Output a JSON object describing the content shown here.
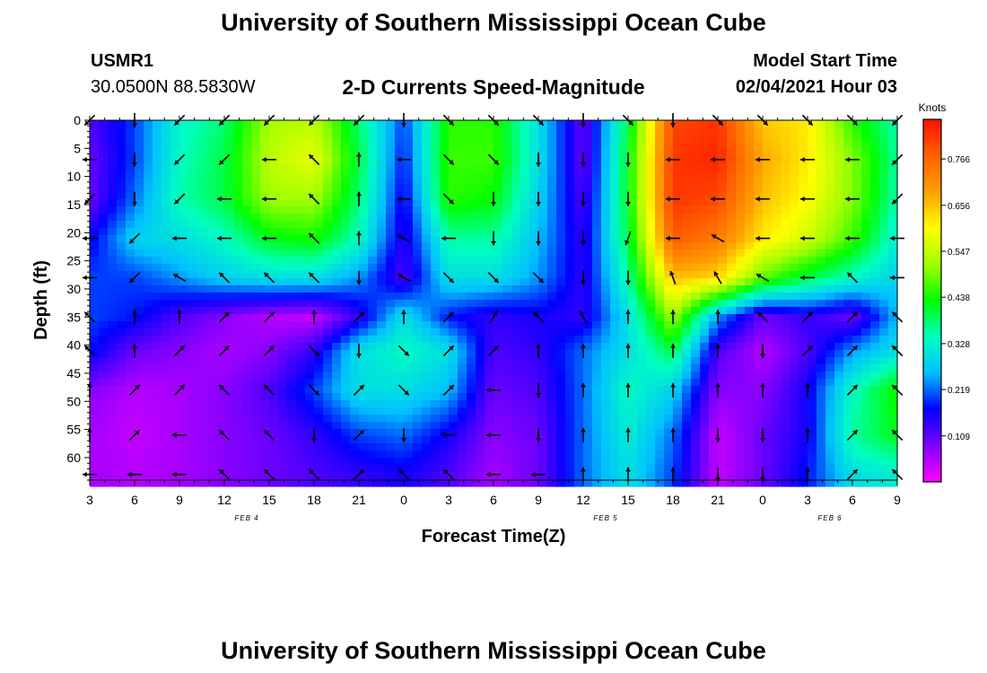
{
  "header": {
    "title": "University of Southern Mississippi Ocean Cube",
    "station_id": "USMR1",
    "station_coords": "30.0500N 88.5830W",
    "subtitle": "2-D Currents Speed-Magnitude",
    "model_start_label": "Model Start Time",
    "model_start_value": "02/04/2021 Hour 03"
  },
  "footer": {
    "title": "University of Southern Mississippi Ocean Cube"
  },
  "chart_data": {
    "type": "heatmap",
    "xlabel": "Forecast Time(Z)",
    "ylabel": "Depth (ft)",
    "x_ticks": [
      "3",
      "6",
      "9",
      "12",
      "15",
      "18",
      "21",
      "0",
      "3",
      "6",
      "9",
      "12",
      "15",
      "18",
      "21",
      "0",
      "3",
      "6",
      "9"
    ],
    "date_labels": [
      {
        "label": "FEB 4",
        "after_tick": 3.5
      },
      {
        "label": "FEB 5",
        "after_tick": 11.5
      },
      {
        "label": "FEB 6",
        "after_tick": 16.5
      }
    ],
    "y_ticks": [
      0,
      5,
      10,
      15,
      20,
      25,
      30,
      35,
      40,
      45,
      50,
      55,
      60
    ],
    "ylim": [
      0,
      64
    ],
    "colorbar": {
      "title": "Knots",
      "ticks": [
        "0.766",
        "0.656",
        "0.547",
        "0.438",
        "0.328",
        "0.219",
        "0.109"
      ],
      "colors": [
        "#ff00ff",
        "#8000ff",
        "#0000ff",
        "#00c0ff",
        "#00ffc0",
        "#00ff00",
        "#a0ff00",
        "#ffff00",
        "#ffa000",
        "#ff6000",
        "#ff1000"
      ]
    },
    "depth_levels": [
      0,
      7,
      14,
      21,
      28,
      35,
      41,
      48,
      56,
      63
    ],
    "speed_grid": [
      [
        0.12,
        0.2,
        0.33,
        0.38,
        0.52,
        0.54,
        0.38,
        0.2,
        0.45,
        0.45,
        0.3,
        0.1,
        0.4,
        0.8,
        0.82,
        0.65,
        0.62,
        0.45,
        0.35
      ],
      [
        0.1,
        0.2,
        0.34,
        0.4,
        0.54,
        0.58,
        0.4,
        0.18,
        0.46,
        0.46,
        0.3,
        0.1,
        0.42,
        0.82,
        0.84,
        0.68,
        0.62,
        0.5,
        0.36
      ],
      [
        0.1,
        0.22,
        0.35,
        0.4,
        0.52,
        0.52,
        0.38,
        0.16,
        0.45,
        0.43,
        0.28,
        0.12,
        0.42,
        0.82,
        0.8,
        0.66,
        0.6,
        0.5,
        0.35
      ],
      [
        0.16,
        0.28,
        0.3,
        0.34,
        0.42,
        0.44,
        0.34,
        0.14,
        0.36,
        0.36,
        0.26,
        0.14,
        0.4,
        0.78,
        0.74,
        0.62,
        0.56,
        0.46,
        0.32
      ],
      [
        0.2,
        0.2,
        0.24,
        0.28,
        0.3,
        0.3,
        0.24,
        0.12,
        0.3,
        0.3,
        0.24,
        0.14,
        0.36,
        0.66,
        0.64,
        0.48,
        0.4,
        0.34,
        0.28
      ],
      [
        0.2,
        0.18,
        0.12,
        0.08,
        0.05,
        0.04,
        0.14,
        0.3,
        0.18,
        0.14,
        0.16,
        0.14,
        0.3,
        0.52,
        0.24,
        0.1,
        0.14,
        0.1,
        0.26
      ],
      [
        0.18,
        0.1,
        0.08,
        0.06,
        0.08,
        0.14,
        0.3,
        0.34,
        0.3,
        0.12,
        0.14,
        0.22,
        0.3,
        0.4,
        0.12,
        0.05,
        0.12,
        0.24,
        0.3
      ],
      [
        0.08,
        0.05,
        0.06,
        0.08,
        0.12,
        0.2,
        0.3,
        0.3,
        0.26,
        0.1,
        0.12,
        0.22,
        0.34,
        0.28,
        0.08,
        0.08,
        0.16,
        0.34,
        0.44
      ],
      [
        0.06,
        0.04,
        0.06,
        0.08,
        0.1,
        0.14,
        0.2,
        0.22,
        0.16,
        0.08,
        0.1,
        0.22,
        0.32,
        0.22,
        0.04,
        0.1,
        0.16,
        0.36,
        0.42
      ],
      [
        0.06,
        0.05,
        0.06,
        0.08,
        0.1,
        0.12,
        0.14,
        0.16,
        0.12,
        0.06,
        0.1,
        0.22,
        0.3,
        0.2,
        0.04,
        0.1,
        0.18,
        0.3,
        0.32
      ]
    ],
    "arrow_depths": [
      0,
      7,
      14,
      21,
      28,
      35,
      41,
      48,
      56,
      63
    ],
    "arrow_directions_deg": [
      [
        225,
        180,
        225,
        225,
        225,
        225,
        225,
        180,
        135,
        135,
        135,
        180,
        135,
        180,
        135,
        135,
        135,
        135,
        225
      ],
      [
        270,
        180,
        225,
        225,
        270,
        315,
        0,
        270,
        135,
        135,
        180,
        180,
        180,
        270,
        270,
        270,
        270,
        270,
        225
      ],
      [
        225,
        180,
        225,
        270,
        270,
        315,
        0,
        270,
        135,
        180,
        180,
        180,
        180,
        270,
        270,
        270,
        270,
        270,
        225
      ],
      [
        270,
        225,
        270,
        270,
        270,
        315,
        0,
        300,
        270,
        180,
        180,
        180,
        200,
        270,
        300,
        270,
        270,
        270,
        270
      ],
      [
        270,
        225,
        300,
        315,
        315,
        315,
        180,
        300,
        135,
        135,
        135,
        180,
        180,
        340,
        330,
        300,
        270,
        315,
        270
      ],
      [
        315,
        0,
        0,
        45,
        45,
        0,
        45,
        0,
        45,
        30,
        315,
        330,
        0,
        0,
        0,
        315,
        45,
        45,
        315
      ],
      [
        315,
        0,
        45,
        45,
        45,
        135,
        180,
        135,
        45,
        45,
        0,
        0,
        0,
        0,
        0,
        180,
        45,
        45,
        315
      ],
      [
        0,
        45,
        45,
        315,
        315,
        135,
        45,
        135,
        45,
        270,
        180,
        0,
        0,
        0,
        0,
        0,
        0,
        45,
        315
      ],
      [
        0,
        45,
        270,
        315,
        315,
        180,
        45,
        180,
        270,
        270,
        180,
        0,
        0,
        0,
        180,
        180,
        0,
        45,
        315
      ],
      [
        270,
        270,
        270,
        315,
        315,
        315,
        45,
        315,
        315,
        270,
        270,
        0,
        0,
        0,
        180,
        180,
        0,
        45,
        315
      ]
    ]
  }
}
